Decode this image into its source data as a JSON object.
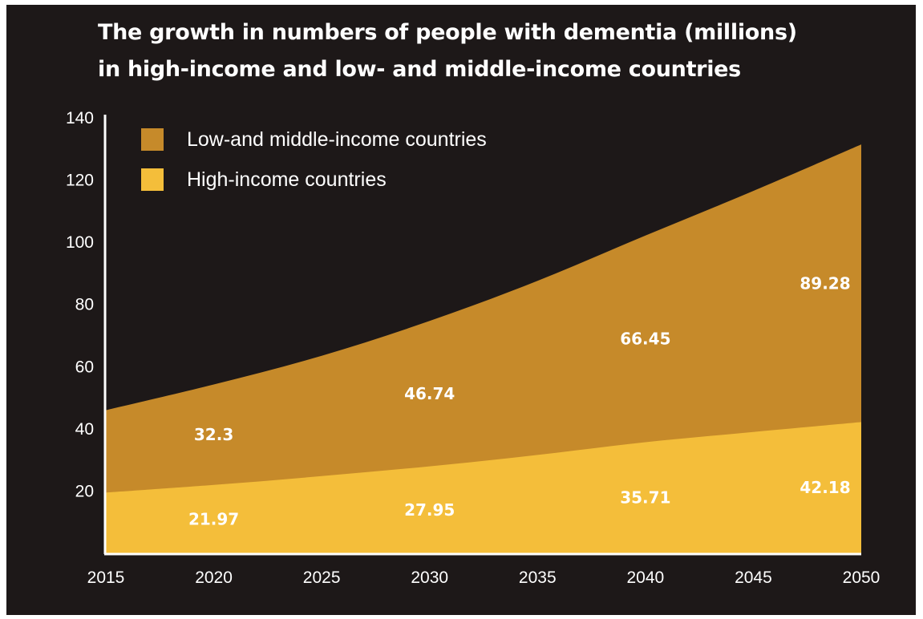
{
  "title_line1": "The growth in numbers of people with dementia (millions)",
  "title_line2": "in high-income and low- and middle-income countries",
  "colors": {
    "background": "#1d1818",
    "low_middle": "#c68a2a",
    "high": "#f4be3a",
    "axis": "#ffffff"
  },
  "chart_data": {
    "type": "area",
    "stacked": true,
    "x": [
      2015,
      2020,
      2025,
      2030,
      2035,
      2040,
      2045,
      2050
    ],
    "series": [
      {
        "name": "High-income countries",
        "color": "#f4be3a",
        "values": [
          19.5,
          21.97,
          24.8,
          27.95,
          31.6,
          35.71,
          39.0,
          42.18
        ]
      },
      {
        "name": "Low-and middle-income countries",
        "color": "#c68a2a",
        "values": [
          26.5,
          32.3,
          38.7,
          46.74,
          56.0,
          66.45,
          77.5,
          89.28
        ]
      }
    ],
    "data_labels": [
      {
        "series": 0,
        "x": 2020,
        "text": "21.97"
      },
      {
        "series": 0,
        "x": 2030,
        "text": "27.95"
      },
      {
        "series": 0,
        "x": 2040,
        "text": "35.71"
      },
      {
        "series": 0,
        "x": 2050,
        "text": "42.18"
      },
      {
        "series": 1,
        "x": 2020,
        "text": "32.3"
      },
      {
        "series": 1,
        "x": 2030,
        "text": "46.74"
      },
      {
        "series": 1,
        "x": 2040,
        "text": "66.45"
      },
      {
        "series": 1,
        "x": 2050,
        "text": "89.28"
      }
    ],
    "x_ticks": [
      "2015",
      "2020",
      "2025",
      "2030",
      "2035",
      "2040",
      "2045",
      "2050"
    ],
    "y_ticks": [
      "20",
      "40",
      "60",
      "80",
      "100",
      "120",
      "140"
    ],
    "xlim": [
      2015,
      2050
    ],
    "ylim": [
      0,
      140
    ],
    "legend": [
      "Low-and middle-income countries",
      "High-income countries"
    ],
    "legend_position": "top-left",
    "grid": false
  }
}
